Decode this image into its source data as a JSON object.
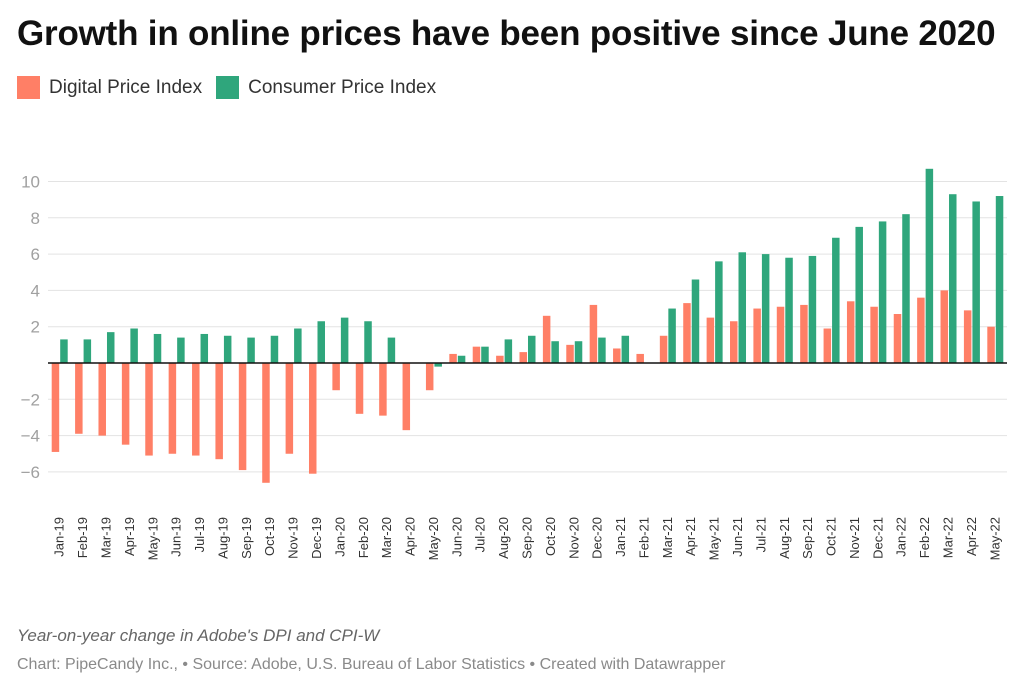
{
  "title": "Growth in online prices have been positive since June 2020",
  "legend": [
    {
      "label": "Digital Price Index",
      "color": "#FF7F66"
    },
    {
      "label": "Consumer Price Index",
      "color": "#2FA67C"
    }
  ],
  "footer": {
    "description": "Year-on-year change in Adobe's DPI and CPI-W",
    "source": "Chart: PipeCandy Inc., • Source: Adobe, U.S. Bureau of Labor Statistics • Created with Datawrapper"
  },
  "chart_data": {
    "type": "bar",
    "title": "Growth in online prices have been positive since June 2020",
    "subtitle": "Year-on-year change in Adobe's DPI and CPI-W",
    "xlabel": "",
    "ylabel": "",
    "ylim": [
      -8,
      11
    ],
    "yticks": [
      10,
      8,
      6,
      4,
      2,
      0,
      -2,
      -4,
      -6
    ],
    "ytick_labels": [
      "10",
      "8",
      "6",
      "4",
      "2",
      "",
      "-2",
      "-4",
      "-6"
    ],
    "grid": true,
    "legend_position": "top-left",
    "categories": [
      "Jan-19",
      "Feb-19",
      "Mar-19",
      "Apr-19",
      "May-19",
      "Jun-19",
      "Jul-19",
      "Aug-19",
      "Sep-19",
      "Oct-19",
      "Nov-19",
      "Dec-19",
      "Jan-20",
      "Feb-20",
      "Mar-20",
      "Apr-20",
      "May-20",
      "Jun-20",
      "Jul-20",
      "Aug-20",
      "Sep-20",
      "Oct-20",
      "Nov-20",
      "Dec-20",
      "Jan-21",
      "Feb-21",
      "Mar-21",
      "Apr-21",
      "May-21",
      "Jun-21",
      "Jul-21",
      "Aug-21",
      "Sep-21",
      "Oct-21",
      "Nov-21",
      "Dec-21",
      "Jan-22",
      "Feb-22",
      "Mar-22",
      "Apr-22",
      "May-22"
    ],
    "series": [
      {
        "name": "Digital Price Index",
        "color": "#FF7F66",
        "values": [
          -4.9,
          -3.9,
          -4.0,
          -4.5,
          -5.1,
          -5.0,
          -5.1,
          -5.3,
          -5.9,
          -6.6,
          -5.0,
          -6.1,
          -1.5,
          -2.8,
          -2.9,
          -3.7,
          -1.5,
          0.5,
          0.9,
          0.4,
          0.6,
          2.6,
          1.0,
          3.2,
          0.8,
          0.5,
          1.5,
          3.3,
          2.5,
          2.3,
          3.0,
          3.1,
          3.2,
          1.9,
          3.4,
          3.1,
          2.7,
          3.6,
          4.0,
          2.9,
          2.0
        ]
      },
      {
        "name": "Consumer Price Index",
        "color": "#2FA67C",
        "values": [
          1.3,
          1.3,
          1.7,
          1.9,
          1.6,
          1.4,
          1.6,
          1.5,
          1.4,
          1.5,
          1.9,
          2.3,
          2.5,
          2.3,
          1.4,
          0.0,
          -0.2,
          0.4,
          0.9,
          1.3,
          1.5,
          1.2,
          1.2,
          1.4,
          1.5,
          0.0,
          3.0,
          4.6,
          5.6,
          6.1,
          6.0,
          5.8,
          5.9,
          6.9,
          7.5,
          7.8,
          8.2,
          10.7,
          9.3,
          8.9,
          9.2
        ]
      }
    ]
  }
}
